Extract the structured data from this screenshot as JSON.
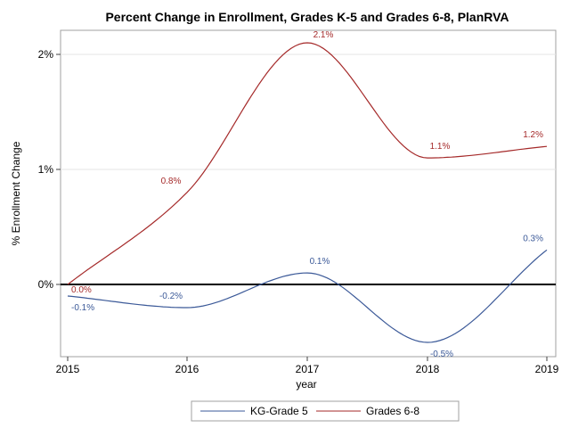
{
  "chart_data": {
    "type": "line",
    "title": "Percent Change in Enrollment, Grades K-5 and Grades 6-8, PlanRVA",
    "xlabel": "year",
    "ylabel": "% Enrollment Change",
    "x": [
      2015,
      2016,
      2017,
      2018,
      2019
    ],
    "xlim": [
      2014.95,
      2019.0
    ],
    "ylim": [
      -0.6,
      2.2
    ],
    "x_ticks": [
      {
        "value": 2015,
        "label": "2015"
      },
      {
        "value": 2016,
        "label": "2016"
      },
      {
        "value": 2017,
        "label": "2017"
      },
      {
        "value": 2018,
        "label": "2018"
      },
      {
        "value": 2019,
        "label": "2019"
      }
    ],
    "y_ticks": [
      {
        "value": 0,
        "label": "0%"
      },
      {
        "value": 1,
        "label": "1%"
      },
      {
        "value": 2,
        "label": "2%"
      }
    ],
    "reference_line": 0,
    "grid": true,
    "legend_position": "bottom",
    "series": [
      {
        "name": "KG-Grade 5",
        "color": "#3b5998",
        "values": [
          -0.1,
          -0.2,
          0.1,
          -0.5,
          0.3
        ],
        "data_labels": [
          "-0.1%",
          "-0.2%",
          "0.1%",
          "-0.5%",
          "0.3%"
        ]
      },
      {
        "name": "Grades 6-8",
        "color": "#a52a2a",
        "values": [
          0.0,
          0.8,
          2.1,
          1.1,
          1.2
        ],
        "data_labels": [
          "0.0%",
          "0.8%",
          "2.1%",
          "1.1%",
          "1.2%"
        ]
      }
    ]
  }
}
